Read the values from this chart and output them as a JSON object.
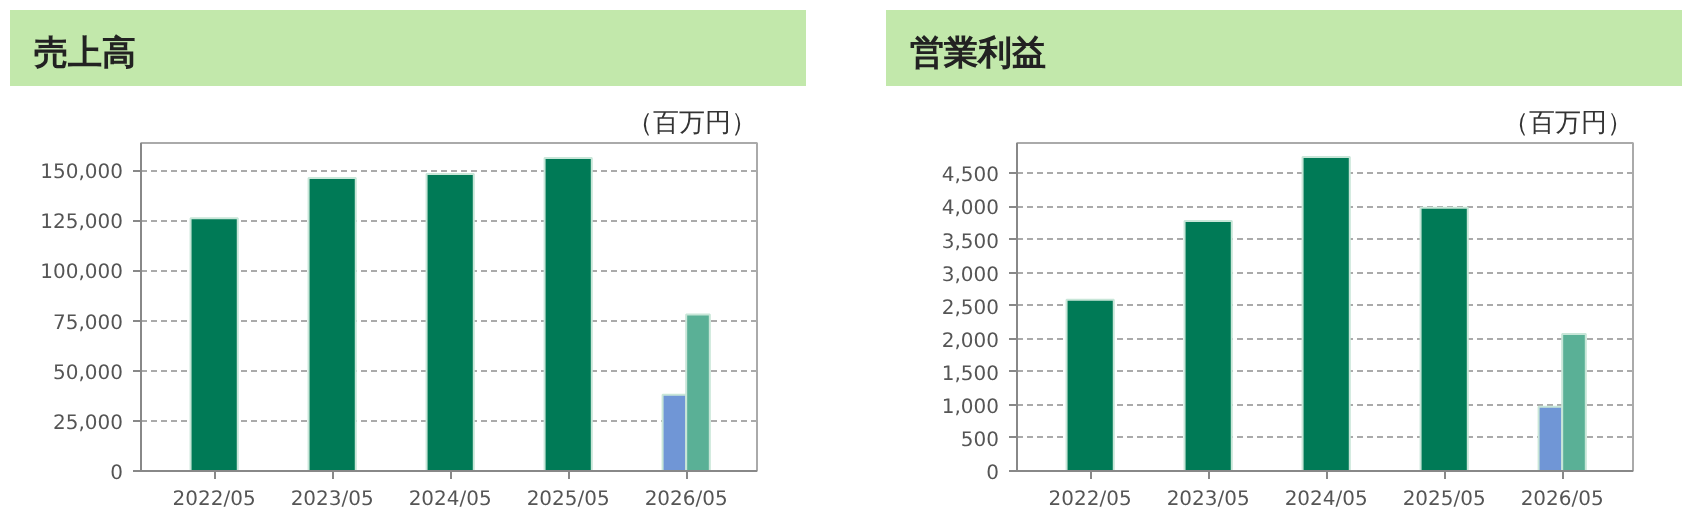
{
  "chart_data": [
    {
      "type": "bar",
      "title": "売上高",
      "ylabel": "（百万円）",
      "categories": [
        "2022/05",
        "2023/05",
        "2024/05",
        "2025/05",
        "2026/05"
      ],
      "series": [
        {
          "color": "#007a56",
          "values": [
            126000,
            146000,
            148000,
            156000,
            null
          ]
        },
        {
          "color": "#7096d6",
          "values": [
            null,
            null,
            null,
            null,
            38000
          ]
        },
        {
          "color": "#5ab096",
          "values": [
            null,
            null,
            null,
            null,
            78000
          ]
        }
      ],
      "ylim": [
        0,
        163500
      ],
      "yticks": [
        {
          "value": 0,
          "label": "0"
        },
        {
          "value": 25000,
          "label": "25,000"
        },
        {
          "value": 50000,
          "label": "50,000"
        },
        {
          "value": 75000,
          "label": "75,000"
        },
        {
          "value": 100000,
          "label": "100,000"
        },
        {
          "value": 125000,
          "label": "125,000"
        },
        {
          "value": 150000,
          "label": "150,000"
        }
      ],
      "grid": "y"
    },
    {
      "type": "bar",
      "title": "営業利益",
      "ylabel": "（百万円）",
      "categories": [
        "2022/05",
        "2023/05",
        "2024/05",
        "2025/05",
        "2026/05"
      ],
      "series": [
        {
          "color": "#007a56",
          "values": [
            2590,
            3780,
            4750,
            3980,
            null
          ]
        },
        {
          "color": "#7096d6",
          "values": [
            null,
            null,
            null,
            null,
            970
          ]
        },
        {
          "color": "#5ab096",
          "values": [
            null,
            null,
            null,
            null,
            2070
          ]
        }
      ],
      "ylim": [
        0,
        4960
      ],
      "yticks": [
        {
          "value": 0,
          "label": "0"
        },
        {
          "value": 500,
          "label": "500"
        },
        {
          "value": 1000,
          "label": "1,000"
        },
        {
          "value": 1500,
          "label": "1,500"
        },
        {
          "value": 2000,
          "label": "2,000"
        },
        {
          "value": 2500,
          "label": "2,500"
        },
        {
          "value": 3000,
          "label": "3,000"
        },
        {
          "value": 3500,
          "label": "3,500"
        },
        {
          "value": 4000,
          "label": "4,000"
        },
        {
          "value": 4500,
          "label": "4,500"
        }
      ],
      "grid": "y"
    }
  ]
}
